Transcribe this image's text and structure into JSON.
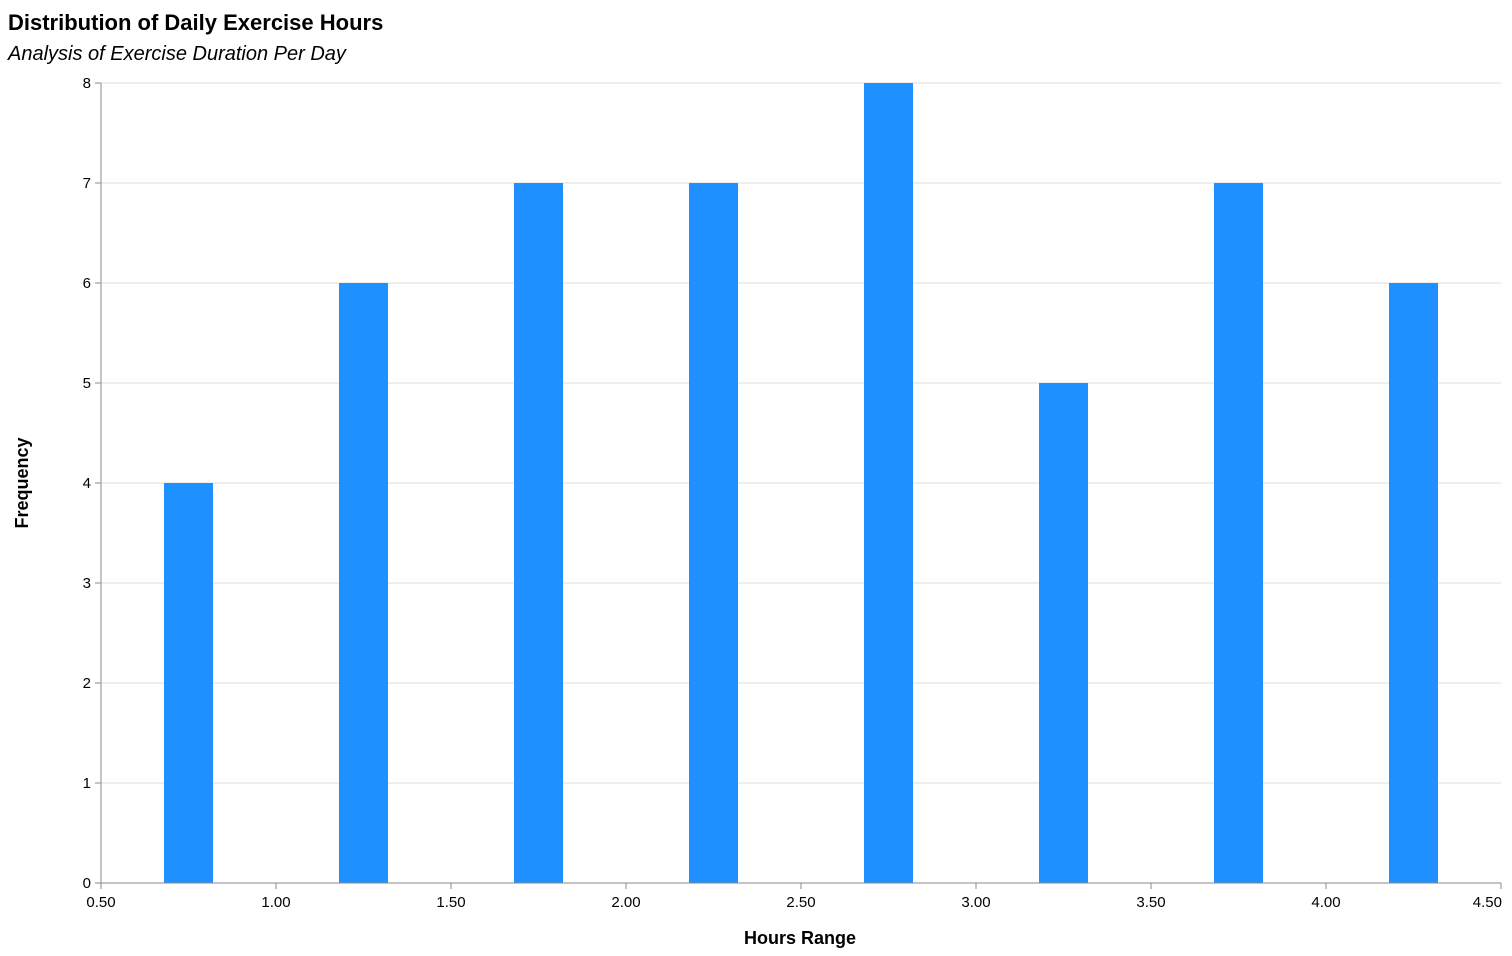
{
  "chart_data": {
    "type": "bar",
    "title": "Distribution of Daily Exercise Hours",
    "subtitle": "Analysis of Exercise Duration Per Day",
    "xlabel": "Hours Range",
    "ylabel": "Frequency",
    "xlim": [
      0.5,
      4.5
    ],
    "ylim": [
      0,
      8
    ],
    "x_ticks": [
      "0.50",
      "1.00",
      "1.50",
      "2.00",
      "2.50",
      "3.00",
      "3.50",
      "4.00",
      "4.50"
    ],
    "y_ticks": [
      "0",
      "1",
      "2",
      "3",
      "4",
      "5",
      "6",
      "7",
      "8"
    ],
    "grid": true,
    "bar_color": "#1e90ff",
    "bins": [
      {
        "x": 0.75,
        "value": 4
      },
      {
        "x": 1.25,
        "value": 6
      },
      {
        "x": 1.75,
        "value": 7
      },
      {
        "x": 2.25,
        "value": 7
      },
      {
        "x": 2.75,
        "value": 8
      },
      {
        "x": 3.25,
        "value": 5
      },
      {
        "x": 3.75,
        "value": 7
      },
      {
        "x": 4.25,
        "value": 6
      }
    ],
    "bar_width_hours": 0.14
  }
}
